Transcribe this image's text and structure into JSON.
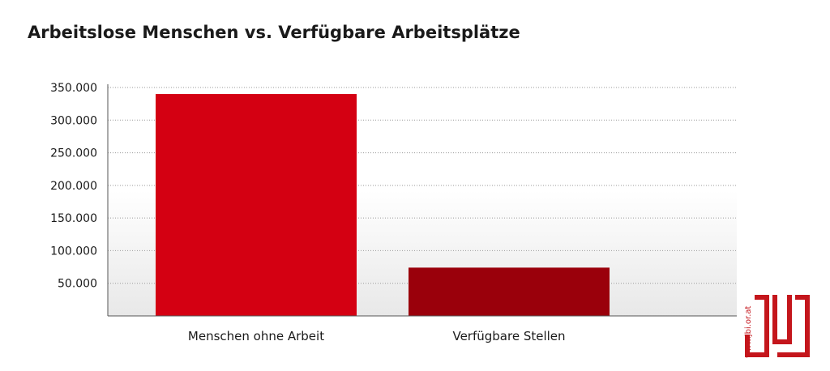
{
  "title": "Arbeitslose Menschen vs. Verfügbare Arbeitsplätze",
  "brand": {
    "url": "www.jbi.or.at",
    "logo_text": "jbi",
    "color": "#c4161c"
  },
  "colors": {
    "bar_primary": "#d40012",
    "bar_secondary": "#9a000b",
    "grid": "#9a9a9a",
    "axis": "#555555",
    "background_gradient_bottom": "#e8e8e8"
  },
  "chart_data": {
    "type": "bar",
    "title": "Arbeitslose Menschen vs. Verfügbare Arbeitsplätze",
    "categories": [
      "Menschen ohne Arbeit",
      "Verfügbare Stellen"
    ],
    "values": [
      340000,
      74000
    ],
    "bar_colors": [
      "#d40012",
      "#9a000b"
    ],
    "ylim": [
      0,
      350000
    ],
    "yticks": [
      50000,
      100000,
      150000,
      200000,
      250000,
      300000,
      350000
    ],
    "ytick_labels": [
      "50.000",
      "100.000",
      "150.000",
      "200.000",
      "250.000",
      "300.000",
      "350.000"
    ],
    "xlabel": "",
    "ylabel": "",
    "grid": true,
    "grid_style": "dotted",
    "legend": false
  }
}
